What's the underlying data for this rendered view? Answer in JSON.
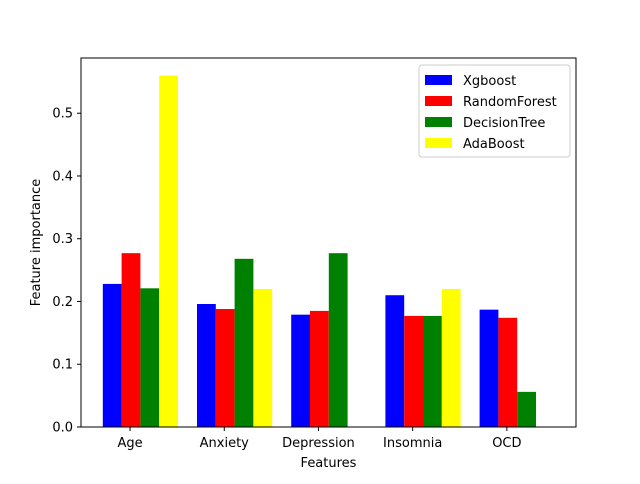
{
  "chart_data": {
    "type": "bar",
    "title": "",
    "xlabel": "Features",
    "ylabel": "Feature importance",
    "categories": [
      "Age",
      "Anxiety",
      "Depression",
      "Insomnia",
      "OCD"
    ],
    "ylim": [
      0,
      0.588
    ],
    "yticks": [
      0.0,
      0.1,
      0.2,
      0.3,
      0.4,
      0.5
    ],
    "ytick_labels": [
      "0.0",
      "0.1",
      "0.2",
      "0.3",
      "0.4",
      "0.5"
    ],
    "grid": false,
    "legend_position": "top-right",
    "series": [
      {
        "name": "Xgboost",
        "color": "#0000ff",
        "values": [
          0.228,
          0.196,
          0.179,
          0.21,
          0.187
        ]
      },
      {
        "name": "RandomForest",
        "color": "#ff0000",
        "values": [
          0.277,
          0.188,
          0.185,
          0.177,
          0.174
        ]
      },
      {
        "name": "DecisionTree",
        "color": "#008000",
        "values": [
          0.221,
          0.268,
          0.277,
          0.177,
          0.056
        ]
      },
      {
        "name": "AdaBoost",
        "color": "#ffff00",
        "values": [
          0.56,
          0.22,
          0.0,
          0.22,
          0.0
        ]
      }
    ]
  }
}
